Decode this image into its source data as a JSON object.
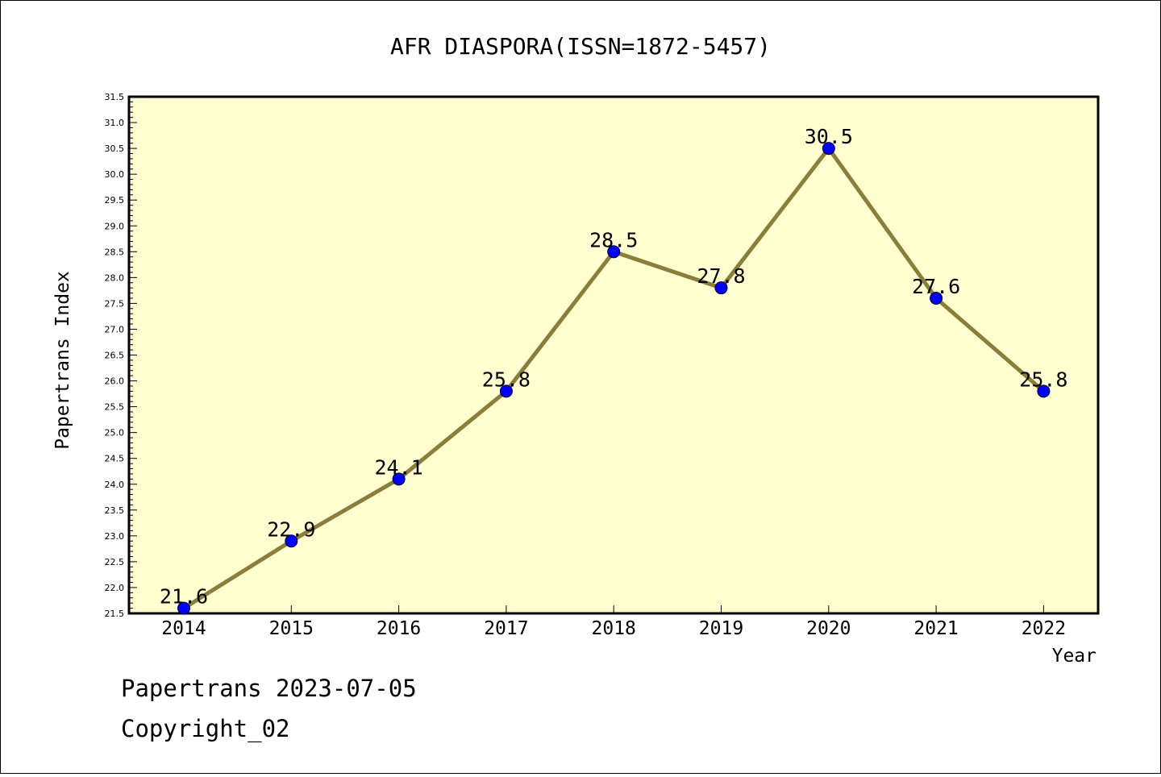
{
  "chart_data": {
    "type": "line",
    "title": "AFR DIASPORA(ISSN=1872-5457)",
    "xlabel": "Year",
    "ylabel": "Papertrans Index",
    "categories": [
      "2014",
      "2015",
      "2016",
      "2017",
      "2018",
      "2019",
      "2020",
      "2021",
      "2022"
    ],
    "values": [
      21.6,
      22.9,
      24.1,
      25.8,
      28.5,
      27.8,
      30.5,
      27.6,
      25.8
    ],
    "data_labels": [
      "21.6",
      "22.9",
      "24.1",
      "25.8",
      "28.5",
      "27.8",
      "30.5",
      "27.6",
      "25.8"
    ],
    "ylim": [
      21.5,
      31.5
    ],
    "yticks": [
      "21.5",
      "22.0",
      "22.5",
      "23.0",
      "23.5",
      "24.0",
      "24.5",
      "25.0",
      "25.5",
      "26.0",
      "26.5",
      "27.0",
      "27.5",
      "28.0",
      "28.5",
      "29.0",
      "29.5",
      "30.0",
      "30.5",
      "31.0",
      "31.5"
    ],
    "grid": false,
    "colors": {
      "line": "#8b7d3a",
      "marker": "#0000ff",
      "plot_background": "#ffffd0"
    }
  },
  "footer": {
    "line1": "Papertrans 2023-07-05",
    "line2": "Copyright_02"
  }
}
